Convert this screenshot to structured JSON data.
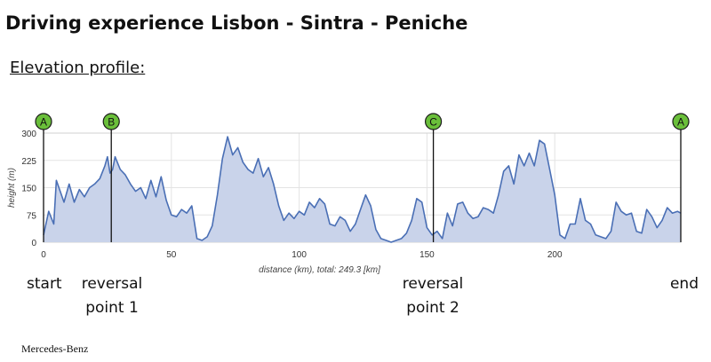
{
  "header": {
    "title": "Driving experience Lisbon - Sintra - Peniche",
    "subtitle": "Elevation profile:"
  },
  "captions": {
    "start": "start",
    "reversal_1_line1": "reversal",
    "reversal_1_line2": "point 1",
    "reversal_2_line1": "reversal",
    "reversal_2_line2": "point  2",
    "end": "end"
  },
  "brand": "Mercedes-Benz",
  "colors": {
    "area_fill": "#c9d3ea",
    "line": "#4a6fb5",
    "marker_fill": "#6abf3a",
    "marker_stroke": "#1a1a1a",
    "grid": "#e3e3e3"
  },
  "chart_data": {
    "type": "area",
    "xlabel": "distance (km), total: 249.3 [km]",
    "ylabel": "height (m)",
    "xlim": [
      0,
      249.3
    ],
    "ylim": [
      0,
      300
    ],
    "x_ticks": [
      0,
      50,
      100,
      150,
      200
    ],
    "y_ticks": [
      0,
      75,
      150,
      225,
      300
    ],
    "grid": true,
    "waypoints": [
      {
        "label": "A",
        "x": 0
      },
      {
        "label": "B",
        "x": 26.5
      },
      {
        "label": "C",
        "x": 152.5
      },
      {
        "label": "A",
        "x": 249.3
      }
    ],
    "series": [
      {
        "x": [
          0,
          2,
          4,
          5,
          6,
          8,
          10,
          12,
          14,
          16,
          18,
          20,
          22,
          24,
          25,
          26,
          27,
          28,
          30,
          32,
          34,
          36,
          38,
          40,
          42,
          44,
          46,
          48,
          50,
          52,
          54,
          56,
          58,
          60,
          62,
          64,
          66,
          68,
          70,
          72,
          74,
          76,
          78,
          80,
          82,
          84,
          86,
          88,
          90,
          92,
          94,
          96,
          98,
          100,
          102,
          104,
          106,
          108,
          110,
          112,
          114,
          116,
          118,
          120,
          122,
          124,
          126,
          128,
          130,
          132,
          134,
          136,
          138,
          140,
          142,
          144,
          146,
          148,
          150,
          152,
          154,
          156,
          158,
          160,
          162,
          164,
          166,
          168,
          170,
          172,
          174,
          176,
          178,
          180,
          182,
          184,
          186,
          188,
          190,
          192,
          194,
          196,
          198,
          200,
          202,
          204,
          206,
          208,
          210,
          212,
          214,
          216,
          218,
          220,
          222,
          224,
          226,
          228,
          230,
          232,
          234,
          236,
          238,
          240,
          242,
          244,
          246,
          248,
          249.3
        ],
        "values": [
          20,
          85,
          50,
          170,
          150,
          110,
          160,
          110,
          145,
          125,
          150,
          160,
          175,
          210,
          235,
          190,
          200,
          235,
          200,
          185,
          160,
          140,
          150,
          120,
          170,
          125,
          180,
          115,
          75,
          70,
          90,
          80,
          100,
          10,
          5,
          15,
          45,
          130,
          230,
          290,
          240,
          260,
          220,
          200,
          190,
          230,
          180,
          205,
          160,
          100,
          60,
          80,
          65,
          85,
          75,
          110,
          95,
          120,
          105,
          50,
          45,
          70,
          60,
          30,
          50,
          90,
          130,
          100,
          35,
          10,
          5,
          0,
          5,
          10,
          25,
          60,
          120,
          110,
          40,
          20,
          30,
          10,
          80,
          45,
          105,
          110,
          80,
          65,
          70,
          95,
          90,
          80,
          130,
          195,
          210,
          160,
          240,
          210,
          245,
          210,
          280,
          270,
          200,
          130,
          20,
          10,
          50,
          50,
          120,
          60,
          50,
          20,
          15,
          10,
          30,
          110,
          85,
          75,
          80,
          30,
          25,
          90,
          70,
          40,
          60,
          95,
          80,
          85,
          80
        ]
      }
    ]
  }
}
